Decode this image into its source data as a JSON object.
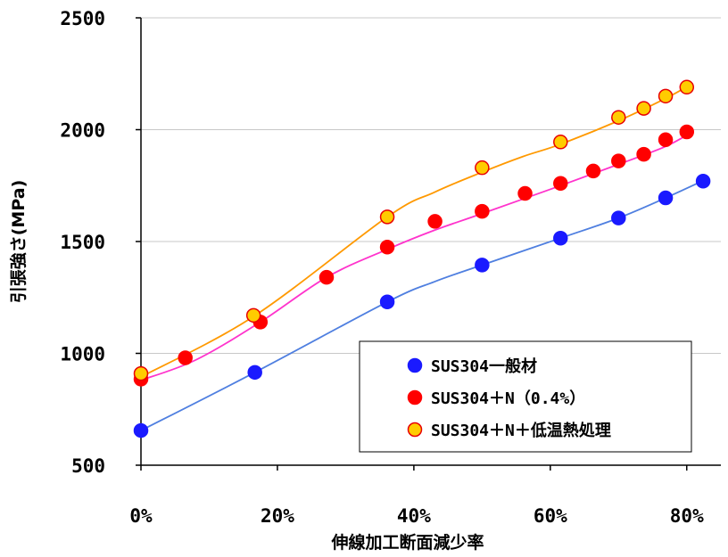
{
  "chart_data": {
    "type": "scatter",
    "xlabel": "伸線加工断面減少率",
    "ylabel": "引張強さ(MPa)",
    "xlim": [
      0,
      85
    ],
    "ylim": [
      500,
      2500
    ],
    "x_ticks": [
      {
        "value": 0,
        "label": "0%"
      },
      {
        "value": 20,
        "label": "20%"
      },
      {
        "value": 40,
        "label": "40%"
      },
      {
        "value": 60,
        "label": "60%"
      },
      {
        "value": 80,
        "label": "80%"
      }
    ],
    "y_ticks": [
      {
        "value": 500,
        "label": "500"
      },
      {
        "value": 1000,
        "label": "1000"
      },
      {
        "value": 1500,
        "label": "1500"
      },
      {
        "value": 2000,
        "label": "2000"
      },
      {
        "value": 2500,
        "label": "2500"
      }
    ],
    "grid": {
      "horizontal": true,
      "vertical": false
    },
    "legend_position": "bottom-right",
    "series": [
      {
        "name": "SUS304一般材",
        "marker_color": "#1a1aff",
        "marker_edge": "#1a1aff",
        "line_color": "#4f7fe0",
        "points": [
          [
            0,
            655
          ],
          [
            16.7,
            915
          ],
          [
            36.1,
            1230
          ],
          [
            50,
            1395
          ],
          [
            61.5,
            1515
          ],
          [
            70,
            1605
          ],
          [
            76.9,
            1695
          ],
          [
            82.4,
            1770
          ]
        ],
        "curve": [
          [
            0,
            655
          ],
          [
            16.7,
            915
          ],
          [
            36.1,
            1230
          ],
          [
            43,
            1320
          ],
          [
            50,
            1395
          ],
          [
            61.5,
            1515
          ],
          [
            70,
            1605
          ],
          [
            76.9,
            1695
          ],
          [
            83,
            1780
          ]
        ]
      },
      {
        "name": "SUS304＋N（0.4%）",
        "marker_color": "#ff0000",
        "marker_edge": "#ff0000",
        "line_color": "#ff33cc",
        "points": [
          [
            0,
            885
          ],
          [
            6.5,
            980
          ],
          [
            17.5,
            1140
          ],
          [
            27.2,
            1340
          ],
          [
            36.1,
            1475
          ],
          [
            43.1,
            1590
          ],
          [
            50,
            1635
          ],
          [
            56.3,
            1715
          ],
          [
            61.5,
            1760
          ],
          [
            66.3,
            1815
          ],
          [
            70,
            1860
          ],
          [
            73.7,
            1890
          ],
          [
            76.9,
            1955
          ],
          [
            80,
            1990
          ]
        ],
        "curve": [
          [
            0,
            880
          ],
          [
            8,
            970
          ],
          [
            17.5,
            1140
          ],
          [
            27.2,
            1340
          ],
          [
            36.1,
            1465
          ],
          [
            43,
            1550
          ],
          [
            50,
            1625
          ],
          [
            61.5,
            1750
          ],
          [
            70,
            1845
          ],
          [
            76.9,
            1925
          ],
          [
            80.5,
            1985
          ]
        ]
      },
      {
        "name": "SUS304＋N＋低温熱処理",
        "marker_color": "#ffcc00",
        "marker_edge": "#e80000",
        "line_color": "#ff9900",
        "points": [
          [
            0,
            910
          ],
          [
            16.5,
            1170
          ],
          [
            36.1,
            1610
          ],
          [
            50,
            1830
          ],
          [
            61.5,
            1945
          ],
          [
            70,
            2055
          ],
          [
            73.7,
            2095
          ],
          [
            76.9,
            2150
          ],
          [
            80,
            2190
          ]
        ],
        "curve": [
          [
            0,
            895
          ],
          [
            16.5,
            1165
          ],
          [
            36.1,
            1610
          ],
          [
            43,
            1720
          ],
          [
            50,
            1810
          ],
          [
            56,
            1880
          ],
          [
            61.5,
            1935
          ],
          [
            70,
            2040
          ],
          [
            76.9,
            2140
          ],
          [
            80.5,
            2200
          ]
        ]
      }
    ]
  }
}
